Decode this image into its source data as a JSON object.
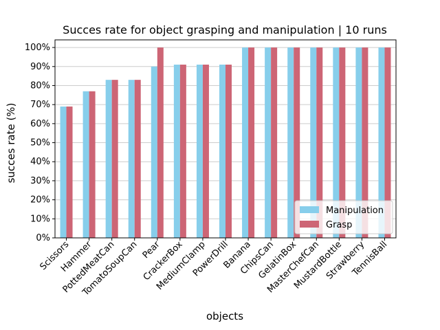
{
  "chart_data": {
    "type": "bar",
    "title": "Succes rate for object grasping and manipulation | 10 runs",
    "xlabel": "objects",
    "ylabel": "succes rate (%)",
    "ylim": [
      0,
      1.04
    ],
    "yticks": [
      0,
      0.1,
      0.2,
      0.3,
      0.4,
      0.5,
      0.6,
      0.7,
      0.8,
      0.9,
      1.0
    ],
    "ytick_labels": [
      "0%",
      "10%",
      "20%",
      "30%",
      "40%",
      "50%",
      "60%",
      "70%",
      "80%",
      "90%",
      "100%"
    ],
    "grid": "horizontal",
    "legend_position": "bottom-right",
    "categories": [
      "Scissors",
      "Hammer",
      "PottedMeatCan",
      "TomatoSoupCan",
      "Pear",
      "CrackerBox",
      "MediumClamp",
      "PowerDrill",
      "Banana",
      "ChipsCan",
      "GelatinBox",
      "MasterChefCan",
      "MustardBottle",
      "Strawberry",
      "TennisBall"
    ],
    "series": [
      {
        "name": "Manipulation",
        "color": "#87ceeb",
        "values": [
          0.69,
          0.77,
          0.83,
          0.83,
          0.9,
          0.91,
          0.91,
          0.91,
          1.0,
          1.0,
          1.0,
          1.0,
          1.0,
          1.0,
          1.0
        ]
      },
      {
        "name": "Grasp",
        "color": "#cd6575",
        "values": [
          0.69,
          0.77,
          0.83,
          0.83,
          1.0,
          0.91,
          0.91,
          0.91,
          1.0,
          1.0,
          1.0,
          1.0,
          1.0,
          1.0,
          1.0
        ]
      }
    ]
  }
}
